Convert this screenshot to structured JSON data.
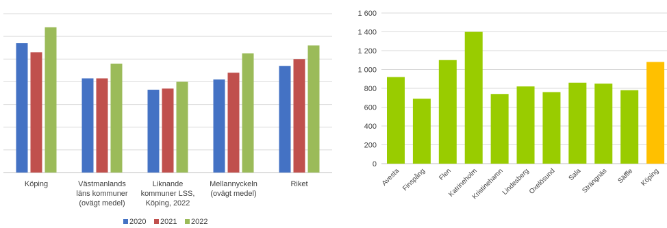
{
  "chart_data": [
    {
      "type": "bar",
      "categories": [
        [
          "Köping"
        ],
        [
          "Västmanlands",
          "läns kommuner",
          "(ovägt medel)"
        ],
        [
          "Liknande",
          "kommuner LSS,",
          "Köping, 2022"
        ],
        [
          "Mellannyckeln",
          "(ovägt medel)"
        ],
        [
          "Riket"
        ]
      ],
      "series": [
        {
          "name": "2020",
          "color": "#4472c4",
          "values": [
            1.14,
            0.83,
            0.73,
            0.82,
            0.94
          ]
        },
        {
          "name": "2021",
          "color": "#c0504d",
          "values": [
            1.06,
            0.83,
            0.74,
            0.88,
            1.0
          ]
        },
        {
          "name": "2022",
          "color": "#9bbb59",
          "values": [
            1.28,
            0.96,
            0.8,
            1.05,
            1.12
          ]
        }
      ],
      "ylim": [
        0,
        1.4
      ],
      "gridlines": 7,
      "legend_position": "bottom",
      "show_y_tick_labels": false,
      "grid": true
    },
    {
      "type": "bar",
      "categories": [
        "Avesta",
        "Finspång",
        "Flen",
        "Katrineholm",
        "Kristinehamn",
        "Lindesberg",
        "Oxelösund",
        "Sala",
        "Strängnäs",
        "Säffle",
        "Köping"
      ],
      "values": [
        920,
        690,
        1100,
        1400,
        740,
        820,
        760,
        860,
        850,
        780,
        1080
      ],
      "colors": [
        "#99cc00",
        "#99cc00",
        "#99cc00",
        "#99cc00",
        "#99cc00",
        "#99cc00",
        "#99cc00",
        "#99cc00",
        "#99cc00",
        "#99cc00",
        "#ffc000"
      ],
      "ylim": [
        0,
        1600
      ],
      "yticks": [
        0,
        200,
        400,
        600,
        800,
        1000,
        1200,
        1400,
        1600
      ],
      "ytick_labels": [
        "0",
        "200",
        "400",
        "600",
        "800",
        "1 000",
        "1 200",
        "1 400",
        "1 600"
      ],
      "grid": true
    }
  ]
}
